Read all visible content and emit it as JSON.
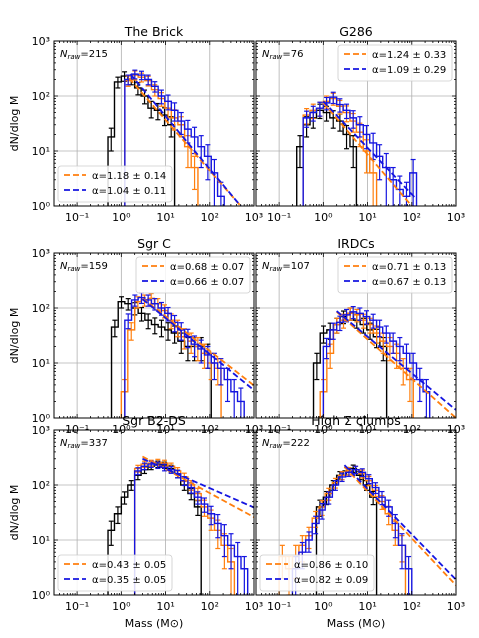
{
  "figure": {
    "ylabel": "dN/dlog M",
    "xlabel": "Mass (M⊙)",
    "x_axis": {
      "scale": "log",
      "min": 0.03,
      "max": 1000
    },
    "y_axis": {
      "scale": "log",
      "min": 1,
      "max": 1000
    },
    "x_tick_labels": [
      "10⁻¹",
      "10⁰",
      "10¹",
      "10²",
      "10³"
    ],
    "y_tick_labels": [
      "10⁰",
      "10¹",
      "10²",
      "10³"
    ],
    "grid": true,
    "colors": {
      "orange": "#ff7f0e",
      "blue": "#1515e0",
      "black": "#000000"
    }
  },
  "chart_data": [
    {
      "type": "step-histogram",
      "title": "The Brick",
      "n_raw_label": "N",
      "n_raw_sub": "raw",
      "n_raw_value": "=215",
      "legend_position": "bottom-left",
      "fits": [
        {
          "label": "α=1.18 ± 0.14",
          "color": "orange",
          "x": [
            1.5,
            500
          ],
          "y": [
            210,
            0.6
          ]
        },
        {
          "label": "α=1.04 ± 0.11",
          "color": "blue",
          "x": [
            1.6,
            500
          ],
          "y": [
            250,
            1.0
          ]
        }
      ],
      "histograms": [
        {
          "color": "black",
          "edges": [
            0.5,
            0.7,
            1.0,
            1.4,
            2.0,
            2.8,
            4.0,
            5.6,
            8.0,
            11.2,
            16
          ],
          "values": [
            18,
            180,
            230,
            200,
            140,
            100,
            60,
            55,
            45,
            30
          ],
          "errors": [
            8,
            40,
            45,
            40,
            35,
            28,
            20,
            18,
            16,
            12
          ]
        },
        {
          "color": "orange",
          "edges": [
            1.2,
            1.7,
            2.4,
            3.4,
            4.8,
            6.8,
            9.6,
            13.5,
            19,
            27,
            38,
            54
          ],
          "values": [
            190,
            240,
            220,
            190,
            130,
            90,
            60,
            40,
            30,
            12,
            5
          ],
          "errors": [
            40,
            45,
            40,
            38,
            30,
            25,
            20,
            16,
            12,
            7,
            3
          ]
        },
        {
          "color": "blue",
          "edges": [
            1.2,
            1.7,
            2.4,
            3.4,
            4.8,
            6.8,
            9.6,
            13.5,
            19,
            27,
            38,
            54,
            76,
            108,
            150,
            212
          ],
          "values": [
            200,
            250,
            240,
            200,
            150,
            100,
            80,
            55,
            35,
            25,
            18,
            12,
            8,
            4,
            1.5
          ],
          "errors": [
            40,
            45,
            42,
            40,
            32,
            28,
            24,
            20,
            15,
            11,
            9,
            7,
            5,
            3,
            1.2
          ]
        }
      ]
    },
    {
      "type": "step-histogram",
      "title": "G286",
      "n_raw_label": "N",
      "n_raw_sub": "raw",
      "n_raw_value": "=76",
      "legend_position": "top-right",
      "fits": [
        {
          "label": "α=1.24 ± 0.33",
          "color": "orange",
          "x": [
            1.0,
            100
          ],
          "y": [
            75,
            0.8
          ]
        },
        {
          "label": "α=1.09 ± 0.29",
          "color": "blue",
          "x": [
            1.0,
            120
          ],
          "y": [
            80,
            1.4
          ]
        }
      ],
      "histograms": [
        {
          "color": "black",
          "edges": [
            0.25,
            0.35,
            0.5,
            0.7,
            1.0,
            1.4,
            2.0,
            2.8,
            4.0,
            5.6
          ],
          "values": [
            12,
            30,
            40,
            55,
            50,
            40,
            35,
            20,
            12
          ],
          "errors": [
            7,
            12,
            14,
            16,
            15,
            14,
            12,
            9,
            7
          ]
        },
        {
          "color": "orange",
          "edges": [
            0.35,
            0.5,
            0.7,
            1.0,
            1.4,
            2.0,
            2.8,
            4.0,
            5.6,
            8.0,
            11.2,
            16
          ],
          "values": [
            45,
            55,
            60,
            80,
            90,
            65,
            50,
            35,
            22,
            10,
            4
          ],
          "errors": [
            14,
            16,
            17,
            20,
            22,
            18,
            16,
            13,
            10,
            6,
            3
          ]
        },
        {
          "color": "blue",
          "edges": [
            0.35,
            0.5,
            0.7,
            1.0,
            1.4,
            2.0,
            2.8,
            4.0,
            5.6,
            8.0,
            11.2,
            16,
            22,
            32,
            45,
            64,
            90,
            128
          ],
          "values": [
            40,
            50,
            60,
            75,
            95,
            70,
            55,
            40,
            30,
            20,
            14,
            8,
            5,
            3,
            2,
            1.5,
            4
          ],
          "errors": [
            13,
            15,
            17,
            19,
            22,
            19,
            16,
            14,
            12,
            9,
            7,
            5,
            4,
            2,
            1.5,
            1.2,
            3
          ]
        }
      ]
    },
    {
      "type": "step-histogram",
      "title": "Sgr C",
      "n_raw_label": "N",
      "n_raw_sub": "raw",
      "n_raw_value": "=159",
      "legend_position": "top-right",
      "fits": [
        {
          "label": "α=0.68 ± 0.07",
          "color": "orange",
          "x": [
            3.0,
            1000
          ],
          "y": [
            150,
            3.9
          ]
        },
        {
          "label": "α=0.66 ± 0.07",
          "color": "blue",
          "x": [
            3.0,
            1000
          ],
          "y": [
            145,
            3.2
          ]
        }
      ],
      "histograms": [
        {
          "color": "black",
          "edges": [
            0.6,
            0.85,
            1.2,
            1.7,
            2.4,
            3.4,
            4.8,
            6.8,
            9.6,
            13.5,
            19,
            27,
            38,
            54,
            76,
            108
          ],
          "values": [
            45,
            130,
            120,
            100,
            80,
            60,
            50,
            45,
            40,
            35,
            25,
            20,
            20,
            20,
            15
          ],
          "errors": [
            15,
            30,
            28,
            25,
            22,
            18,
            16,
            15,
            14,
            12,
            10,
            9,
            9,
            9,
            7
          ]
        },
        {
          "color": "orange",
          "edges": [
            1.0,
            1.4,
            2.0,
            2.8,
            4.0,
            5.6,
            8.0,
            11.2,
            16,
            22,
            32,
            45,
            64,
            90,
            128,
            180
          ],
          "values": [
            3,
            40,
            130,
            140,
            150,
            120,
            90,
            60,
            45,
            30,
            25,
            20,
            15,
            10,
            8
          ],
          "errors": [
            2,
            14,
            30,
            32,
            33,
            28,
            24,
            18,
            15,
            12,
            10,
            9,
            7,
            5,
            4
          ]
        },
        {
          "color": "blue",
          "edges": [
            1.2,
            1.7,
            2.4,
            3.4,
            4.8,
            6.8,
            9.6,
            13.5,
            19,
            27,
            38,
            54,
            76,
            108,
            150,
            212,
            300,
            424,
            600
          ],
          "values": [
            60,
            140,
            155,
            140,
            120,
            100,
            80,
            55,
            40,
            30,
            22,
            18,
            14,
            10,
            8,
            5,
            3,
            2
          ],
          "errors": [
            18,
            32,
            34,
            32,
            28,
            26,
            22,
            18,
            14,
            11,
            9,
            8,
            6,
            5,
            4,
            3,
            2,
            1.5
          ]
        }
      ]
    },
    {
      "type": "step-histogram",
      "title": "IRDCs",
      "n_raw_label": "N",
      "n_raw_sub": "raw",
      "n_raw_value": "=107",
      "legend_position": "top-right",
      "fits": [
        {
          "label": "α=0.71 ± 0.13",
          "color": "orange",
          "x": [
            2.0,
            1000
          ],
          "y": [
            85,
            1.0
          ]
        },
        {
          "label": "α=0.67 ± 0.13",
          "color": "blue",
          "x": [
            2.0,
            1000
          ],
          "y": [
            88,
            1.4
          ]
        }
      ],
      "histograms": [
        {
          "color": "black",
          "edges": [
            0.6,
            0.85,
            1.2,
            1.7,
            2.4,
            3.4,
            4.8,
            6.8,
            9.6,
            13.5,
            19,
            27
          ],
          "values": [
            10,
            35,
            40,
            50,
            70,
            80,
            60,
            50,
            40,
            30,
            20
          ],
          "errors": [
            5,
            12,
            13,
            15,
            18,
            20,
            17,
            15,
            13,
            11,
            9
          ]
        },
        {
          "color": "orange",
          "edges": [
            0.85,
            1.2,
            1.7,
            2.4,
            3.4,
            4.8,
            6.8,
            9.6,
            13.5,
            19,
            27,
            38,
            54,
            76,
            108
          ],
          "values": [
            3,
            15,
            50,
            60,
            80,
            75,
            60,
            50,
            35,
            25,
            20,
            15,
            8,
            5
          ],
          "errors": [
            2,
            7,
            15,
            17,
            20,
            19,
            17,
            15,
            12,
            10,
            9,
            7,
            4,
            3
          ]
        },
        {
          "color": "blue",
          "edges": [
            1.0,
            1.4,
            2.0,
            2.8,
            4.0,
            5.6,
            8.0,
            11.2,
            16,
            22,
            32,
            45,
            64,
            90,
            128,
            180,
            254
          ],
          "values": [
            20,
            40,
            55,
            75,
            85,
            80,
            70,
            60,
            45,
            35,
            25,
            20,
            15,
            10,
            5,
            3
          ],
          "errors": [
            8,
            13,
            16,
            19,
            21,
            20,
            19,
            17,
            15,
            12,
            10,
            9,
            7,
            5,
            3,
            2
          ]
        }
      ]
    },
    {
      "type": "step-histogram",
      "title": "Sgr B2-DS",
      "n_raw_label": "N",
      "n_raw_sub": "raw",
      "n_raw_value": "=337",
      "legend_position": "bottom-left",
      "fits": [
        {
          "label": "α=0.43 ± 0.05",
          "color": "orange",
          "x": [
            3.0,
            1000
          ],
          "y": [
            330,
            26
          ]
        },
        {
          "label": "α=0.35 ± 0.05",
          "color": "blue",
          "x": [
            3.0,
            1000
          ],
          "y": [
            300,
            39
          ]
        }
      ],
      "histograms": [
        {
          "color": "black",
          "edges": [
            0.5,
            0.7,
            1.0,
            1.4,
            2.0,
            2.8,
            4.0,
            5.6,
            8.0,
            11.2,
            16,
            22,
            32,
            45,
            64
          ],
          "values": [
            15,
            30,
            60,
            100,
            150,
            190,
            220,
            240,
            230,
            200,
            160,
            100,
            70,
            40
          ],
          "errors": [
            7,
            10,
            15,
            20,
            25,
            28,
            30,
            32,
            30,
            28,
            25,
            20,
            16,
            12
          ]
        },
        {
          "color": "orange",
          "edges": [
            2.0,
            2.8,
            4.0,
            5.6,
            8.0,
            11.2,
            16,
            22,
            32,
            45,
            64,
            90,
            128,
            180,
            254,
            360
          ],
          "values": [
            200,
            240,
            250,
            260,
            250,
            220,
            180,
            140,
            100,
            70,
            40,
            25,
            15,
            8,
            4
          ],
          "errors": [
            28,
            31,
            32,
            33,
            32,
            30,
            27,
            24,
            20,
            17,
            13,
            10,
            8,
            5,
            3
          ]
        },
        {
          "color": "blue",
          "edges": [
            2.0,
            2.8,
            4.0,
            5.6,
            8.0,
            11.2,
            16,
            22,
            32,
            45,
            64,
            90,
            128,
            180,
            254,
            360,
            508,
            720
          ],
          "values": [
            180,
            220,
            240,
            230,
            210,
            190,
            160,
            120,
            90,
            60,
            45,
            30,
            20,
            12,
            8,
            5,
            3
          ],
          "errors": [
            26,
            30,
            31,
            30,
            29,
            27,
            25,
            22,
            19,
            15,
            13,
            11,
            9,
            7,
            5,
            4,
            2
          ]
        }
      ]
    },
    {
      "type": "step-histogram",
      "title": "High Σ clumps",
      "n_raw_label": "N",
      "n_raw_sub": "raw",
      "n_raw_value": "=222",
      "legend_position": "bottom-left",
      "fits": [
        {
          "label": "α=0.86 ± 0.10",
          "color": "orange",
          "x": [
            3.0,
            1000
          ],
          "y": [
            215,
            1.5
          ]
        },
        {
          "label": "α=0.82 ± 0.09",
          "color": "blue",
          "x": [
            3.0,
            1000
          ],
          "y": [
            230,
            1.9
          ]
        }
      ],
      "histograms": [
        {
          "color": "black",
          "edges": [
            0.7,
            1.0,
            1.4,
            2.0,
            2.8,
            4.0,
            5.6,
            8.0,
            11.2,
            16
          ],
          "values": [
            40,
            60,
            100,
            150,
            180,
            200,
            150,
            100,
            60
          ],
          "errors": [
            13,
            16,
            20,
            25,
            28,
            30,
            25,
            20,
            16
          ]
        },
        {
          "color": "orange",
          "edges": [
            0.1,
            0.14,
            0.2,
            0.28,
            0.4,
            0.56,
            0.8,
            1.1,
            1.6,
            2.2,
            3.2,
            4.5,
            6.4,
            9.0,
            12.8,
            18,
            25,
            36,
            50,
            72
          ],
          "values": [
            5,
            3,
            5,
            8,
            12,
            25,
            40,
            70,
            110,
            150,
            180,
            190,
            160,
            120,
            80,
            50,
            30,
            15,
            8
          ],
          "errors": [
            3,
            2,
            3,
            4,
            5,
            8,
            12,
            17,
            22,
            25,
            28,
            29,
            26,
            23,
            18,
            14,
            11,
            7,
            4
          ]
        },
        {
          "color": "blue",
          "edges": [
            0.2,
            0.28,
            0.4,
            0.56,
            0.8,
            1.1,
            1.6,
            2.2,
            3.2,
            4.5,
            6.4,
            9.0,
            12.8,
            18,
            25,
            36,
            50,
            72,
            100
          ],
          "values": [
            3,
            6,
            10,
            20,
            35,
            60,
            100,
            140,
            170,
            190,
            170,
            130,
            90,
            60,
            40,
            20,
            8,
            3
          ],
          "errors": [
            2,
            3,
            4,
            7,
            11,
            15,
            20,
            24,
            27,
            29,
            27,
            24,
            20,
            16,
            13,
            9,
            5,
            2
          ]
        }
      ]
    }
  ]
}
